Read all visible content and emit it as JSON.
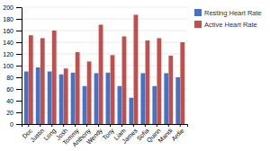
{
  "chart_data": {
    "type": "bar",
    "categories": [
      "Doc",
      "Justin",
      "Long",
      "Josh",
      "Tommy",
      "Anthony",
      "Wendy",
      "Tony",
      "Liam",
      "James",
      "Sofia",
      "Quinn",
      "Mandi",
      "Ardie"
    ],
    "series": [
      {
        "name": "Resting Heart Rate",
        "color": "#4472C4",
        "values": [
          90,
          97,
          90,
          85,
          88,
          65,
          87,
          88,
          65,
          45,
          87,
          65,
          87,
          80
        ]
      },
      {
        "name": "Active Heart Rate",
        "color": "#C0504D",
        "values": [
          152,
          147,
          160,
          95,
          123,
          107,
          170,
          118,
          150,
          187,
          143,
          147,
          117,
          140
        ]
      }
    ],
    "ylim": [
      0,
      200
    ],
    "yticks": [
      0,
      20,
      40,
      60,
      80,
      100,
      120,
      140,
      160,
      180,
      200
    ],
    "grid": true,
    "legend": "upper right"
  }
}
